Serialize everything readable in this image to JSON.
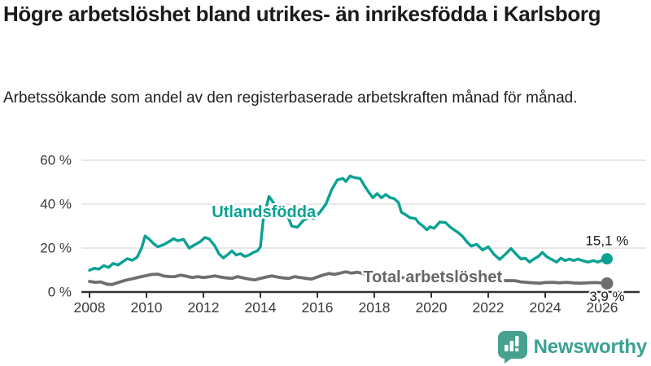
{
  "header": {
    "title": "Högre arbetslöshet bland utrikes- än inrikesfödda i Karlsborg",
    "subtitle": "Arbetssökande som andel av den registerbaserade arbetskraften månad för månad."
  },
  "footer": {
    "brand": "Newsworthy",
    "logo_icon": "speech-bubble-bar-chart",
    "brand_color": "#3aa092",
    "icon_color": "#46a28f"
  },
  "chart_data": {
    "type": "line",
    "title": "Högre arbetslöshet bland utrikes- än inrikesfödda i Karlsborg",
    "subtitle": "Arbetssökande som andel av den registerbaserade arbetskraften månad för månad.",
    "xlabel": "",
    "ylabel": "",
    "xlim": [
      2007.7,
      2027.4
    ],
    "ylim": [
      0,
      63.5
    ],
    "grid": "horizontal",
    "legend_position": "inline-labels",
    "x_ticks": [
      2008,
      2010,
      2012,
      2014,
      2016,
      2018,
      2020,
      2022,
      2024,
      2026
    ],
    "y_ticks": [
      0,
      20,
      40,
      60
    ],
    "y_tick_labels": [
      "0 %",
      "20 %",
      "40 %",
      "60 %"
    ],
    "colors": {
      "grid": "#d9d9d9",
      "axis": "#333333",
      "tick_text": "#3a3a3a",
      "end_label_text": "#1c1c1c"
    },
    "series_labels": [
      {
        "text": "Utlandsfödda",
        "x": 2014.12,
        "y": 36.3,
        "color": "#0aa193"
      },
      {
        "text": "Total arbetslöshet",
        "x": 2020.05,
        "y": 6.6,
        "color": "#666666"
      }
    ],
    "series": [
      {
        "name": "Utlandsfödda",
        "color": "#0aa193",
        "line_width": 3.4,
        "end_dot_radius": 7,
        "end_label": "15,1 %",
        "end_label_dy": -22,
        "points": [
          [
            2008.0,
            9.9
          ],
          [
            2008.17,
            10.8
          ],
          [
            2008.33,
            10.4
          ],
          [
            2008.5,
            12.0
          ],
          [
            2008.67,
            11.2
          ],
          [
            2008.83,
            13.0
          ],
          [
            2009.0,
            12.3
          ],
          [
            2009.17,
            13.8
          ],
          [
            2009.33,
            15.2
          ],
          [
            2009.5,
            14.4
          ],
          [
            2009.67,
            15.8
          ],
          [
            2009.83,
            20.0
          ],
          [
            2009.95,
            25.5
          ],
          [
            2010.1,
            24.0
          ],
          [
            2010.25,
            22.0
          ],
          [
            2010.4,
            20.6
          ],
          [
            2010.6,
            21.5
          ],
          [
            2010.8,
            23.0
          ],
          [
            2010.95,
            24.3
          ],
          [
            2011.1,
            23.3
          ],
          [
            2011.3,
            24.0
          ],
          [
            2011.5,
            20.0
          ],
          [
            2011.7,
            21.5
          ],
          [
            2011.9,
            23.0
          ],
          [
            2012.05,
            24.8
          ],
          [
            2012.2,
            24.2
          ],
          [
            2012.4,
            21.0
          ],
          [
            2012.55,
            17.3
          ],
          [
            2012.7,
            15.5
          ],
          [
            2012.85,
            17.0
          ],
          [
            2013.0,
            18.7
          ],
          [
            2013.15,
            16.8
          ],
          [
            2013.3,
            17.5
          ],
          [
            2013.45,
            16.2
          ],
          [
            2013.6,
            16.8
          ],
          [
            2013.75,
            18.0
          ],
          [
            2013.9,
            18.8
          ],
          [
            2014.0,
            20.5
          ],
          [
            2014.1,
            33.0
          ],
          [
            2014.3,
            43.5
          ],
          [
            2014.5,
            40.0
          ],
          [
            2014.7,
            38.5
          ],
          [
            2014.9,
            36.5
          ],
          [
            2015.1,
            30.0
          ],
          [
            2015.3,
            29.5
          ],
          [
            2015.5,
            32.5
          ],
          [
            2015.7,
            34.0
          ],
          [
            2015.9,
            33.5
          ],
          [
            2016.1,
            36.5
          ],
          [
            2016.3,
            40.0
          ],
          [
            2016.5,
            46.5
          ],
          [
            2016.7,
            51.0
          ],
          [
            2016.9,
            51.7
          ],
          [
            2017.0,
            50.3
          ],
          [
            2017.15,
            52.8
          ],
          [
            2017.3,
            52.1
          ],
          [
            2017.5,
            51.7
          ],
          [
            2017.65,
            48.4
          ],
          [
            2017.8,
            45.5
          ],
          [
            2017.95,
            42.9
          ],
          [
            2018.1,
            44.8
          ],
          [
            2018.25,
            42.9
          ],
          [
            2018.4,
            44.4
          ],
          [
            2018.55,
            43.0
          ],
          [
            2018.7,
            42.5
          ],
          [
            2018.85,
            40.7
          ],
          [
            2018.95,
            36.3
          ],
          [
            2019.1,
            35.2
          ],
          [
            2019.25,
            33.8
          ],
          [
            2019.45,
            33.4
          ],
          [
            2019.55,
            31.6
          ],
          [
            2019.7,
            30.1
          ],
          [
            2019.85,
            28.3
          ],
          [
            2019.95,
            29.7
          ],
          [
            2020.1,
            29.0
          ],
          [
            2020.3,
            31.9
          ],
          [
            2020.5,
            31.6
          ],
          [
            2020.65,
            29.7
          ],
          [
            2020.8,
            28.3
          ],
          [
            2020.95,
            27.0
          ],
          [
            2021.1,
            25.3
          ],
          [
            2021.25,
            22.8
          ],
          [
            2021.4,
            20.9
          ],
          [
            2021.6,
            21.7
          ],
          [
            2021.8,
            19.1
          ],
          [
            2022.0,
            20.6
          ],
          [
            2022.2,
            17.2
          ],
          [
            2022.4,
            14.8
          ],
          [
            2022.6,
            17.2
          ],
          [
            2022.8,
            19.8
          ],
          [
            2023.0,
            16.9
          ],
          [
            2023.15,
            15.0
          ],
          [
            2023.3,
            15.4
          ],
          [
            2023.45,
            13.6
          ],
          [
            2023.6,
            15.0
          ],
          [
            2023.75,
            16.1
          ],
          [
            2023.9,
            18.0
          ],
          [
            2024.05,
            16.1
          ],
          [
            2024.2,
            15.0
          ],
          [
            2024.4,
            13.6
          ],
          [
            2024.55,
            15.4
          ],
          [
            2024.7,
            14.3
          ],
          [
            2024.85,
            15.0
          ],
          [
            2025.0,
            14.3
          ],
          [
            2025.15,
            15.0
          ],
          [
            2025.3,
            14.3
          ],
          [
            2025.5,
            13.6
          ],
          [
            2025.7,
            14.3
          ],
          [
            2025.85,
            13.6
          ],
          [
            2026.0,
            14.5
          ],
          [
            2026.17,
            15.1
          ]
        ]
      },
      {
        "name": "Total arbetslöshet",
        "color": "#6e6e6e",
        "line_width": 3.8,
        "end_dot_radius": 7.5,
        "end_label": "3,9 %",
        "end_label_dy": 16,
        "points": [
          [
            2008.0,
            4.8
          ],
          [
            2008.2,
            4.4
          ],
          [
            2008.4,
            4.6
          ],
          [
            2008.6,
            3.6
          ],
          [
            2008.8,
            3.4
          ],
          [
            2009.0,
            4.3
          ],
          [
            2009.25,
            5.3
          ],
          [
            2009.5,
            6.0
          ],
          [
            2009.75,
            6.8
          ],
          [
            2010.0,
            7.5
          ],
          [
            2010.2,
            8.0
          ],
          [
            2010.4,
            8.1
          ],
          [
            2010.6,
            7.3
          ],
          [
            2010.8,
            7.0
          ],
          [
            2011.0,
            7.0
          ],
          [
            2011.2,
            7.7
          ],
          [
            2011.4,
            7.2
          ],
          [
            2011.6,
            6.6
          ],
          [
            2011.8,
            7.0
          ],
          [
            2012.0,
            6.6
          ],
          [
            2012.2,
            6.9
          ],
          [
            2012.4,
            7.3
          ],
          [
            2012.6,
            6.8
          ],
          [
            2012.8,
            6.4
          ],
          [
            2013.0,
            6.2
          ],
          [
            2013.2,
            7.0
          ],
          [
            2013.4,
            6.4
          ],
          [
            2013.6,
            5.9
          ],
          [
            2013.8,
            5.5
          ],
          [
            2014.0,
            6.2
          ],
          [
            2014.2,
            6.8
          ],
          [
            2014.4,
            7.3
          ],
          [
            2014.6,
            6.8
          ],
          [
            2014.8,
            6.4
          ],
          [
            2015.0,
            6.2
          ],
          [
            2015.2,
            7.0
          ],
          [
            2015.4,
            6.6
          ],
          [
            2015.6,
            6.2
          ],
          [
            2015.8,
            5.9
          ],
          [
            2016.0,
            6.8
          ],
          [
            2016.2,
            7.7
          ],
          [
            2016.4,
            8.4
          ],
          [
            2016.6,
            8.0
          ],
          [
            2016.8,
            8.6
          ],
          [
            2017.0,
            9.2
          ],
          [
            2017.2,
            8.6
          ],
          [
            2017.4,
            9.0
          ],
          [
            2017.6,
            8.4
          ],
          [
            2017.8,
            7.9
          ],
          [
            2018.0,
            7.5
          ],
          [
            2018.25,
            7.2
          ],
          [
            2018.5,
            7.0
          ],
          [
            2018.75,
            6.8
          ],
          [
            2019.0,
            6.5
          ],
          [
            2019.25,
            6.3
          ],
          [
            2019.5,
            6.2
          ],
          [
            2019.75,
            6.1
          ],
          [
            2020.0,
            6.2
          ],
          [
            2020.25,
            6.5
          ],
          [
            2020.5,
            6.4
          ],
          [
            2020.75,
            6.2
          ],
          [
            2021.0,
            6.0
          ],
          [
            2021.25,
            5.8
          ],
          [
            2021.5,
            5.6
          ],
          [
            2021.75,
            5.4
          ],
          [
            2022.0,
            5.3
          ],
          [
            2022.25,
            5.2
          ],
          [
            2022.5,
            5.1
          ],
          [
            2022.75,
            5.2
          ],
          [
            2022.95,
            5.1
          ],
          [
            2023.15,
            4.6
          ],
          [
            2023.35,
            4.4
          ],
          [
            2023.55,
            4.2
          ],
          [
            2023.8,
            4.0
          ],
          [
            2024.0,
            4.3
          ],
          [
            2024.25,
            4.4
          ],
          [
            2024.5,
            4.2
          ],
          [
            2024.75,
            4.4
          ],
          [
            2025.0,
            4.1
          ],
          [
            2025.25,
            4.0
          ],
          [
            2025.5,
            4.2
          ],
          [
            2025.75,
            4.3
          ],
          [
            2026.0,
            4.1
          ],
          [
            2026.17,
            3.9
          ]
        ]
      }
    ]
  }
}
